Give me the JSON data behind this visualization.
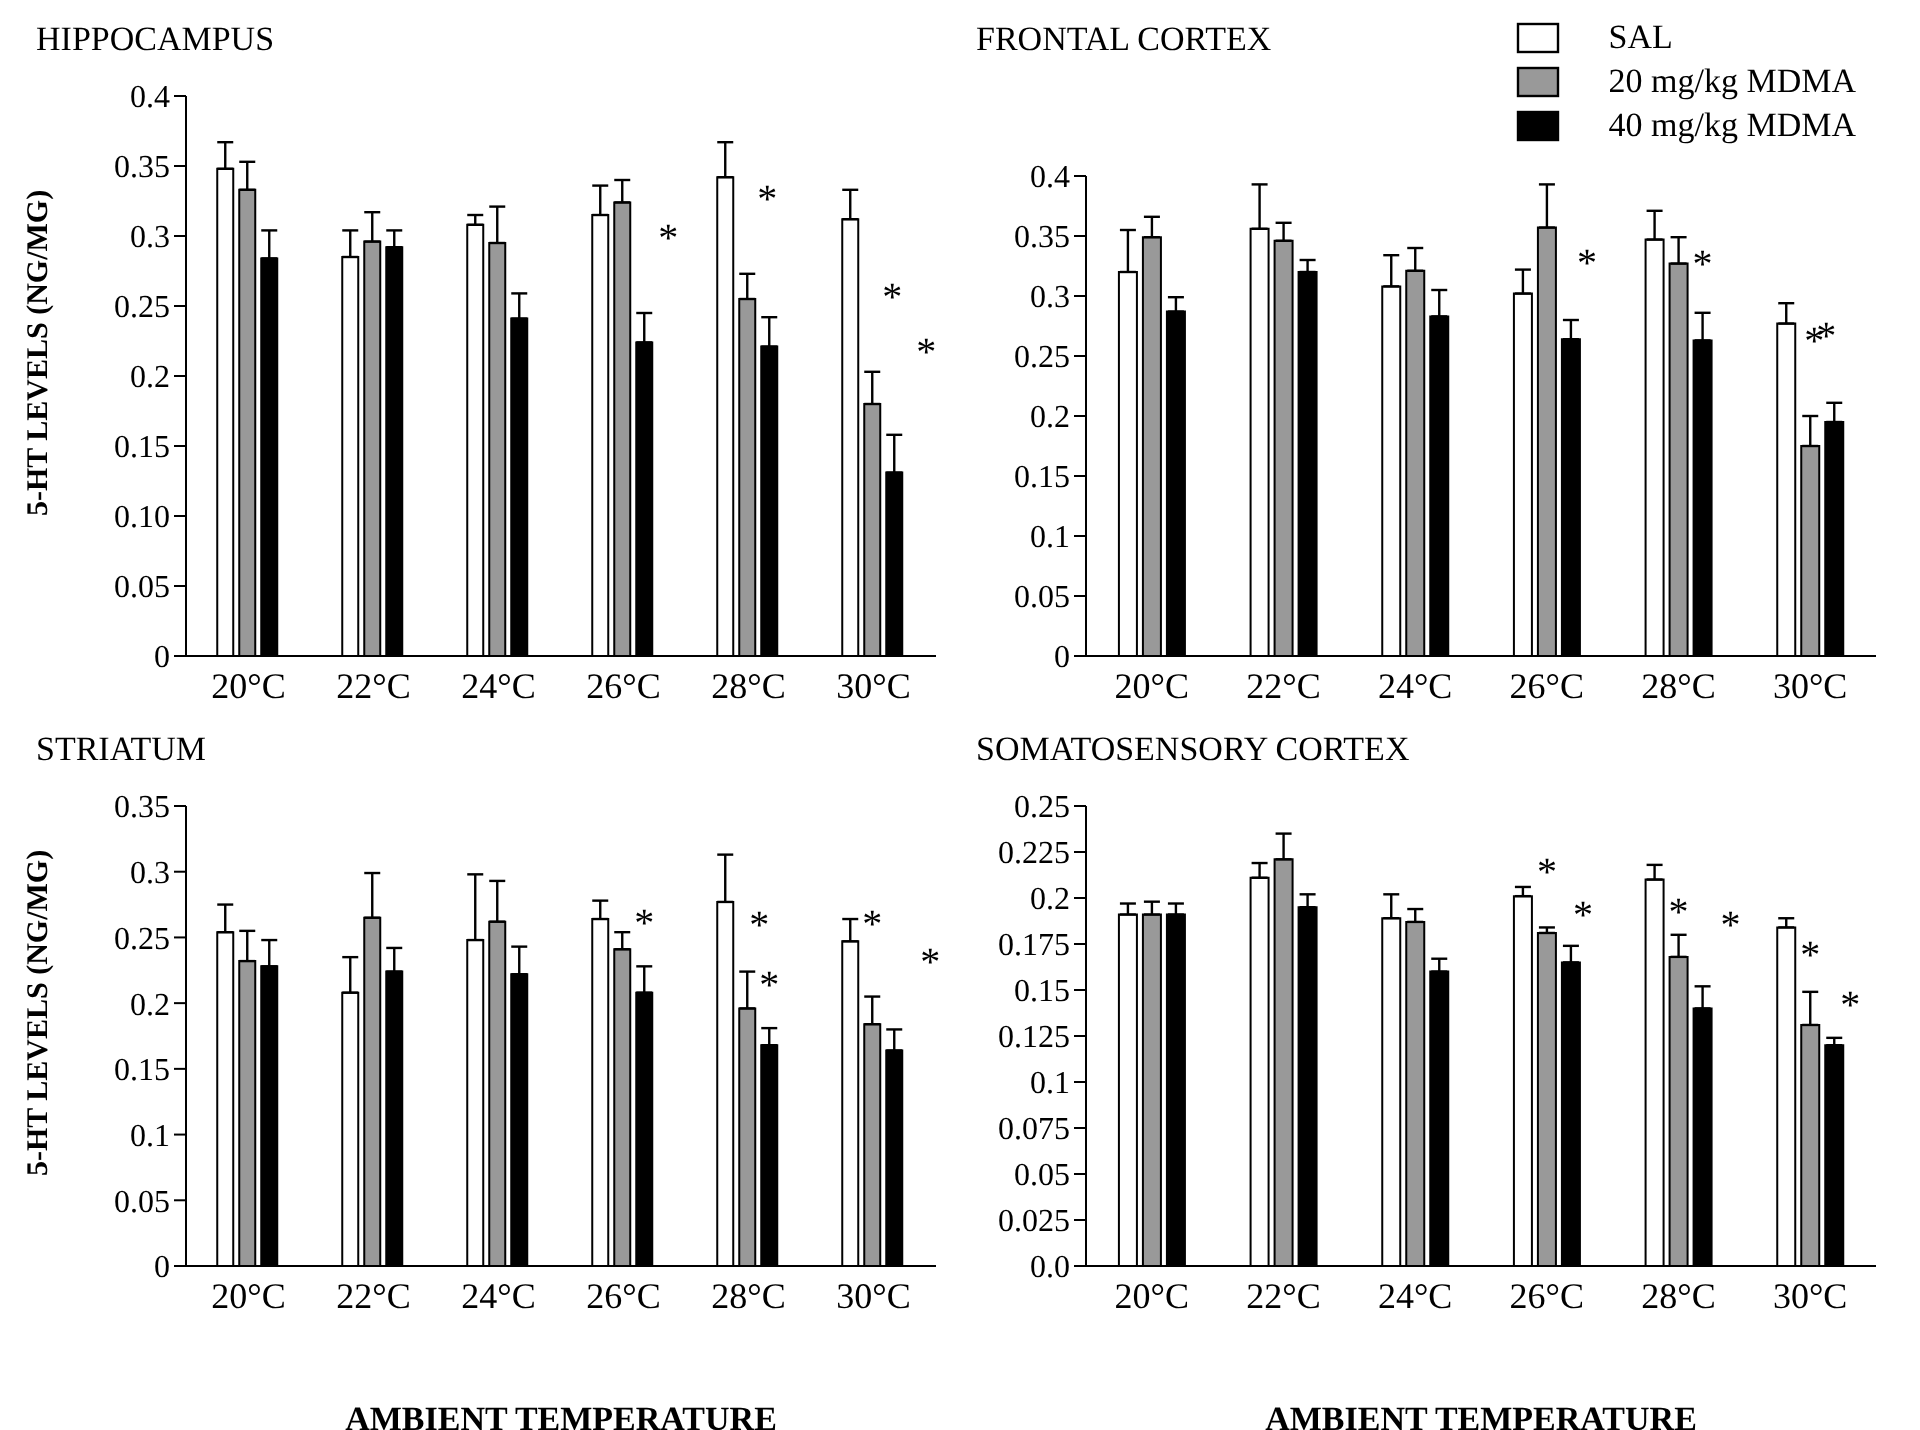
{
  "chart_data": [
    {
      "type": "bar",
      "title": "HIPPOCAMPUS",
      "ylabel": "5-HT LEVELS  (NG/MG)",
      "categories": [
        "20°C",
        "22°C",
        "24°C",
        "26°C",
        "28°C",
        "30°C"
      ],
      "ylim": [
        0,
        0.4
      ],
      "yticks": [
        0,
        0.05,
        {
          "value": 0.1,
          "label": "0.10"
        },
        0.15,
        0.2,
        0.25,
        0.3,
        0.35,
        0.4
      ],
      "grid": false,
      "legend": false,
      "series": [
        {
          "color": "#ffffff",
          "values": [
            0.348,
            0.285,
            0.308,
            0.315,
            0.342,
            0.312
          ],
          "errors": [
            [
              0.348,
              0.367
            ],
            [
              0.285,
              0.304
            ],
            [
              0.308,
              0.315
            ],
            [
              0.315,
              0.336
            ],
            [
              0.342,
              0.367
            ],
            [
              0.312,
              0.333
            ]
          ]
        },
        {
          "color": "#999999",
          "values": [
            0.333,
            0.296,
            0.295,
            0.324,
            0.255,
            0.18
          ],
          "errors": [
            [
              0.333,
              0.353
            ],
            [
              0.296,
              0.317
            ],
            [
              0.295,
              0.321
            ],
            [
              0.324,
              0.34
            ],
            [
              0.255,
              0.273
            ],
            [
              0.18,
              0.203
            ]
          ]
        },
        {
          "color": "#000000",
          "values": [
            0.284,
            0.292,
            0.241,
            0.224,
            0.221,
            0.131
          ],
          "errors": [
            [
              0.284,
              0.304
            ],
            [
              0.292,
              0.304
            ],
            [
              0.241,
              0.259
            ],
            [
              0.224,
              0.245
            ],
            [
              0.221,
              0.242
            ],
            [
              0.131,
              0.158
            ]
          ]
        }
      ],
      "annotations": [
        "*",
        "*",
        "*",
        "*"
      ]
    },
    {
      "type": "bar",
      "title": "FRONTAL CORTEX",
      "categories": [
        "20°C",
        "22°C",
        "24°C",
        "26°C",
        "28°C",
        "30°C"
      ],
      "ylim": [
        0,
        0.4
      ],
      "yticks": [
        0,
        0.05,
        0.1,
        0.15,
        0.2,
        0.25,
        0.3,
        0.35,
        0.4
      ],
      "grid": false,
      "legend": "top right",
      "series": [
        {
          "name": "SAL",
          "color": "#ffffff",
          "values": [
            0.32,
            0.356,
            0.308,
            0.302,
            0.347,
            0.277
          ],
          "errors": [
            [
              0.32,
              0.355
            ],
            [
              0.356,
              0.393
            ],
            [
              0.308,
              0.334
            ],
            [
              0.302,
              0.322
            ],
            [
              0.347,
              0.371
            ],
            [
              0.277,
              0.294
            ]
          ]
        },
        {
          "name": "20 mg/kg MDMA",
          "color": "#999999",
          "values": [
            0.349,
            0.346,
            0.321,
            0.357,
            0.327,
            0.175
          ],
          "errors": [
            [
              0.349,
              0.366
            ],
            [
              0.346,
              0.361
            ],
            [
              0.321,
              0.34
            ],
            [
              0.357,
              0.393
            ],
            [
              0.327,
              0.349
            ],
            [
              0.175,
              0.2
            ]
          ]
        },
        {
          "name": "40 mg/kg MDMA",
          "color": "#000000",
          "values": [
            0.287,
            0.32,
            0.283,
            0.264,
            0.263,
            0.195
          ],
          "errors": [
            [
              0.287,
              0.299
            ],
            [
              0.32,
              0.33
            ],
            [
              0.283,
              0.305
            ],
            [
              0.264,
              0.28
            ],
            [
              0.263,
              0.286
            ],
            [
              0.195,
              0.211
            ]
          ]
        }
      ],
      "annotations": [
        "*",
        "*",
        "*",
        "*"
      ]
    },
    {
      "type": "bar",
      "title": "STRIATUM",
      "ylabel": "5-HT LEVELS  (NG/MG)",
      "xlabel": "AMBIENT TEMPERATURE",
      "categories": [
        "20°C",
        "22°C",
        "24°C",
        "26°C",
        "28°C",
        "30°C"
      ],
      "ylim": [
        0,
        0.35
      ],
      "yticks": [
        0,
        0.05,
        0.1,
        0.15,
        0.2,
        0.25,
        0.3,
        0.35
      ],
      "grid": false,
      "legend": false,
      "series": [
        {
          "color": "#ffffff",
          "values": [
            0.254,
            0.208,
            0.248,
            0.264,
            0.277,
            0.247
          ],
          "errors": [
            [
              0.254,
              0.275
            ],
            [
              0.208,
              0.235
            ],
            [
              0.248,
              0.298
            ],
            [
              0.264,
              0.278
            ],
            [
              0.277,
              0.313
            ],
            [
              0.247,
              0.264
            ]
          ]
        },
        {
          "color": "#999999",
          "values": [
            0.232,
            0.265,
            0.262,
            0.241,
            0.196,
            0.184
          ],
          "errors": [
            [
              0.232,
              0.255
            ],
            [
              0.265,
              0.299
            ],
            [
              0.262,
              0.293
            ],
            [
              0.241,
              0.254
            ],
            [
              0.196,
              0.224
            ],
            [
              0.184,
              0.205
            ]
          ]
        },
        {
          "color": "#000000",
          "values": [
            0.228,
            0.224,
            0.222,
            0.208,
            0.168,
            0.164
          ],
          "errors": [
            [
              0.228,
              0.248
            ],
            [
              0.224,
              0.242
            ],
            [
              0.222,
              0.243
            ],
            [
              0.208,
              0.228
            ],
            [
              0.168,
              0.181
            ],
            [
              0.164,
              0.18
            ]
          ]
        }
      ],
      "annotations": [
        "*",
        "*",
        "*",
        "*",
        "*"
      ]
    },
    {
      "type": "bar",
      "title": "SOMATOSENSORY CORTEX",
      "xlabel": "AMBIENT TEMPERATURE",
      "categories": [
        "20°C",
        "22°C",
        "24°C",
        "26°C",
        "28°C",
        "30°C"
      ],
      "ylim": [
        0,
        0.25
      ],
      "yticks": [
        {
          "value": 0,
          "label": "0.0"
        },
        0.025,
        0.05,
        0.075,
        0.1,
        0.125,
        0.15,
        0.175,
        0.2,
        0.225,
        0.25
      ],
      "grid": false,
      "legend": false,
      "series": [
        {
          "color": "#ffffff",
          "values": [
            0.191,
            0.211,
            0.189,
            0.201,
            0.21,
            0.184
          ],
          "errors": [
            [
              0.191,
              0.197
            ],
            [
              0.211,
              0.219
            ],
            [
              0.189,
              0.202
            ],
            [
              0.201,
              0.206
            ],
            [
              0.21,
              0.218
            ],
            [
              0.184,
              0.189
            ]
          ]
        },
        {
          "color": "#999999",
          "values": [
            0.191,
            0.221,
            0.187,
            0.181,
            0.168,
            0.131
          ],
          "errors": [
            [
              0.191,
              0.198
            ],
            [
              0.221,
              0.235
            ],
            [
              0.187,
              0.194
            ],
            [
              0.181,
              0.184
            ],
            [
              0.168,
              0.18
            ],
            [
              0.131,
              0.149
            ]
          ]
        },
        {
          "color": "#000000",
          "values": [
            0.191,
            0.195,
            0.16,
            0.165,
            0.14,
            0.12
          ],
          "errors": [
            [
              0.191,
              0.197
            ],
            [
              0.195,
              0.202
            ],
            [
              0.16,
              0.167
            ],
            [
              0.165,
              0.174
            ],
            [
              0.14,
              0.152
            ],
            [
              0.12,
              0.124
            ]
          ]
        }
      ],
      "annotations": [
        "*",
        "*",
        "*",
        "*",
        "*",
        "*"
      ]
    }
  ]
}
